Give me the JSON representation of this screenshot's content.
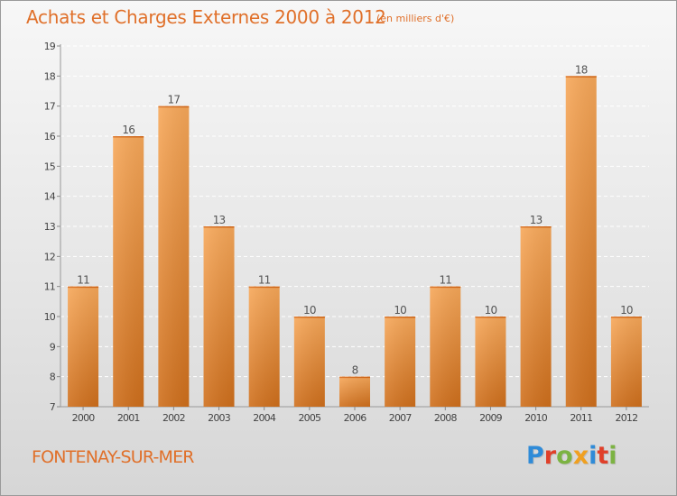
{
  "header": {
    "title": "Achats et Charges Externes 2000 à 2012",
    "unit": "(en milliers d'€)"
  },
  "footer": {
    "commune": "FONTENAY-SUR-MER",
    "logo_text": "Proxiti"
  },
  "colors": {
    "accent": "#e0702a",
    "bar_light": "#f7a85a",
    "bar_dark": "#cf6f1c",
    "logo": [
      "#2f8bd8",
      "#e0402a",
      "#7cb342",
      "#f0a020",
      "#2f8bd8",
      "#e0402a",
      "#7cb342"
    ]
  },
  "chart_data": {
    "type": "bar",
    "title": "Achats et Charges Externes 2000 à 2012",
    "subtitle": "(en milliers d'€)",
    "categories": [
      "2000",
      "2001",
      "2002",
      "2003",
      "2004",
      "2005",
      "2006",
      "2007",
      "2008",
      "2009",
      "2010",
      "2011",
      "2012"
    ],
    "values": [
      11,
      16,
      17,
      13,
      11,
      10,
      8,
      10,
      11,
      10,
      13,
      18,
      10
    ],
    "ylim": [
      7,
      19
    ],
    "yticks": [
      7,
      8,
      9,
      10,
      11,
      12,
      13,
      14,
      15,
      16,
      17,
      18,
      19
    ],
    "grid": true,
    "legend": "none"
  }
}
